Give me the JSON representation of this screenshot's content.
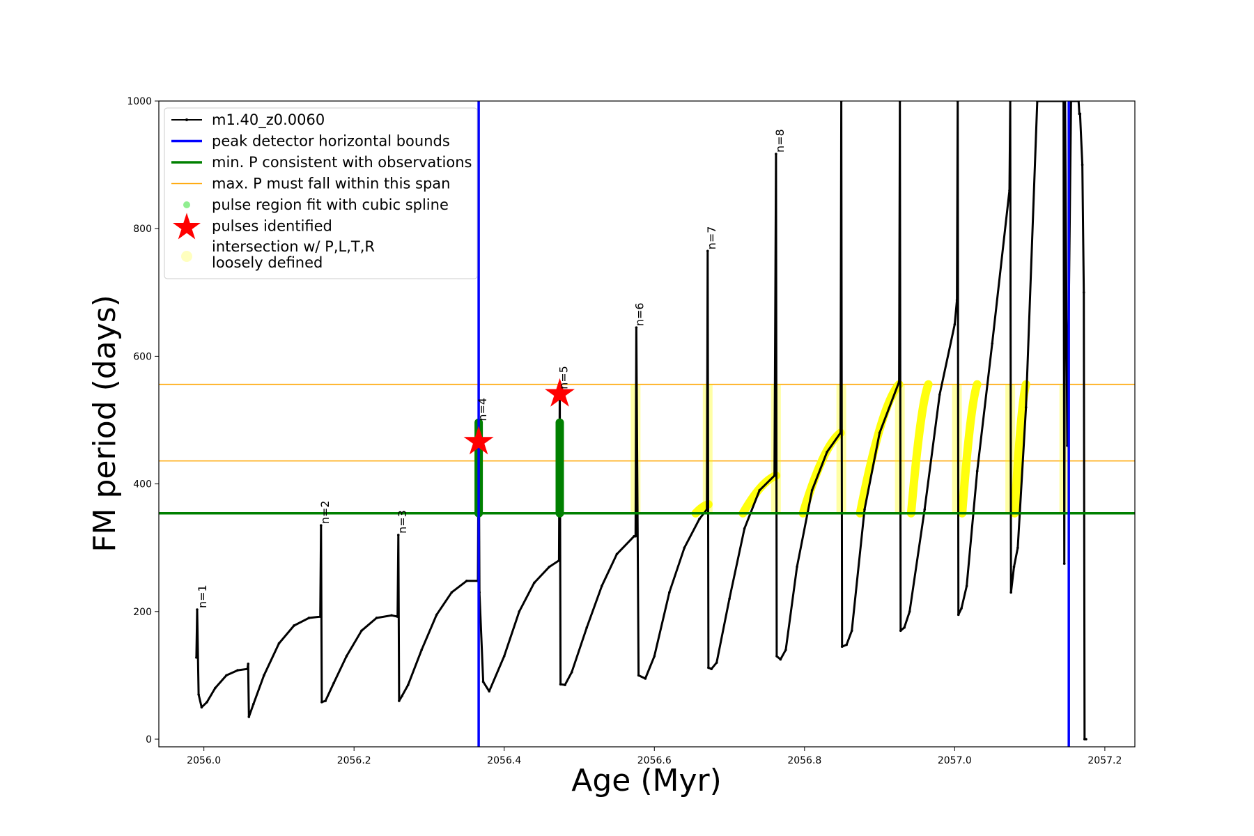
{
  "chart_data": {
    "type": "line",
    "xlabel": "Age (Myr)",
    "ylabel": "FM period (days)",
    "xlim": [
      2055.94,
      2057.24
    ],
    "ylim": [
      -12,
      1000
    ],
    "xticks": [
      "2056.0",
      "2056.2",
      "2056.4",
      "2056.6",
      "2056.8",
      "2057.0",
      "2057.2"
    ],
    "xtick_values": [
      2056.0,
      2056.2,
      2056.4,
      2056.6,
      2056.8,
      2057.0,
      2057.2
    ],
    "yticks": [
      "0",
      "200",
      "400",
      "600",
      "800",
      "1000"
    ],
    "ytick_values": [
      0,
      200,
      400,
      600,
      800,
      1000
    ],
    "grid": false,
    "legend_position": "upper-left",
    "legend": [
      {
        "key": "model",
        "label": "m1.40_z0.0060"
      },
      {
        "key": "bounds",
        "label": "peak detector horizontal bounds"
      },
      {
        "key": "minp",
        "label": "min. P consistent with observations"
      },
      {
        "key": "maxp",
        "label": "max. P must fall within this span"
      },
      {
        "key": "spline",
        "label": "pulse region fit with cubic spline"
      },
      {
        "key": "pulses",
        "label": "pulses identified"
      },
      {
        "key": "loose",
        "label_lines": [
          "intersection w/ P,L,T,R",
          "loosely defined"
        ]
      }
    ],
    "colors": {
      "model": "#000000",
      "bounds": "#0000ff",
      "minp": "#008000",
      "maxp": "#ffa500",
      "spline": "#90ee90",
      "pulses": "#ff0000",
      "loose": "#ffff00"
    },
    "horizontal_bounds_x": [
      2056.366,
      2057.152
    ],
    "min_period": 354,
    "max_period_span": [
      436,
      556
    ],
    "pulse_labels": [
      {
        "text": "n=1",
        "x": 2055.993,
        "y": 203
      },
      {
        "text": "n=2",
        "x": 2056.156,
        "y": 335
      },
      {
        "text": "n=3",
        "x": 2056.259,
        "y": 320
      },
      {
        "text": "n=4",
        "x": 2056.366,
        "y": 496
      },
      {
        "text": "n=5",
        "x": 2056.474,
        "y": 546
      },
      {
        "text": "n=6",
        "x": 2056.575,
        "y": 645
      },
      {
        "text": "n=7",
        "x": 2056.671,
        "y": 765
      },
      {
        "text": "n=8",
        "x": 2056.762,
        "y": 917
      }
    ],
    "pulses_identified": [
      {
        "x": 2056.366,
        "y": 466
      },
      {
        "x": 2056.474,
        "y": 541
      }
    ],
    "series": [
      {
        "name": "m1.40_z0.0060",
        "x": [
          2055.99,
          2055.991,
          2055.993,
          2055.997,
          2056.004,
          2056.015,
          2056.03,
          2056.045,
          2056.058,
          2056.059,
          2056.06,
          2056.066,
          2056.08,
          2056.1,
          2056.12,
          2056.14,
          2056.155,
          2056.156,
          2056.157,
          2056.162,
          2056.173,
          2056.19,
          2056.21,
          2056.23,
          2056.25,
          2056.258,
          2056.259,
          2056.26,
          2056.264,
          2056.272,
          2056.29,
          2056.31,
          2056.33,
          2056.35,
          2056.365,
          2056.366,
          2056.367,
          2056.372,
          2056.38,
          2056.4,
          2056.42,
          2056.44,
          2056.46,
          2056.473,
          2056.474,
          2056.475,
          2056.481,
          2056.49,
          2056.51,
          2056.53,
          2056.55,
          2056.573,
          2056.575,
          2056.576,
          2056.579,
          2056.588,
          2056.6,
          2056.62,
          2056.64,
          2056.66,
          2056.67,
          2056.671,
          2056.672,
          2056.676,
          2056.683,
          2056.7,
          2056.72,
          2056.74,
          2056.76,
          2056.762,
          2056.763,
          2056.768,
          2056.775,
          2056.79,
          2056.81,
          2056.83,
          2056.848,
          2056.849,
          2056.85,
          2056.856,
          2056.863,
          2056.88,
          2056.9,
          2056.926,
          2056.927,
          2056.928,
          2056.933,
          2056.94,
          2056.96,
          2056.98,
          2057.0,
          2057.003,
          2057.004,
          2057.005,
          2057.009,
          2057.016,
          2057.03,
          2057.05,
          2057.073,
          2057.074,
          2057.075,
          2057.079,
          2057.084,
          2057.095,
          2057.11,
          2057.145,
          2057.146,
          2057.147,
          2057.15,
          2057.155,
          2057.165,
          2057.166,
          2057.167,
          2057.17,
          2057.172,
          2057.173,
          2057.175
        ],
        "y": [
          128,
          203,
          70,
          50,
          58,
          80,
          100,
          108,
          110,
          118,
          35,
          55,
          100,
          150,
          178,
          190,
          192,
          335,
          58,
          60,
          88,
          130,
          170,
          190,
          194,
          192,
          320,
          60,
          68,
          85,
          140,
          195,
          230,
          248,
          248,
          496,
          230,
          90,
          75,
          130,
          200,
          245,
          270,
          280,
          546,
          86,
          85,
          105,
          175,
          240,
          290,
          318,
          318,
          645,
          100,
          95,
          130,
          230,
          300,
          345,
          360,
          765,
          112,
          110,
          120,
          220,
          330,
          390,
          413,
          917,
          130,
          125,
          140,
          270,
          390,
          450,
          480,
          1000,
          145,
          148,
          170,
          360,
          480,
          560,
          1000,
          170,
          175,
          200,
          360,
          540,
          650,
          688,
          1000,
          195,
          205,
          240,
          420,
          620,
          860,
          1000,
          230,
          270,
          300,
          520,
          1000,
          1000,
          275,
          1000,
          460,
          1000,
          1000,
          980,
          980,
          900,
          700,
          0,
          0
        ]
      }
    ],
    "spline_fits": [
      {
        "x": 2056.366,
        "y_range": [
          354,
          496
        ]
      },
      {
        "x": 2056.474,
        "y_range": [
          354,
          496
        ]
      }
    ],
    "loose_intersections": [
      {
        "x_range": [
          2056.655,
          2056.672
        ],
        "y_range": [
          354,
          368
        ]
      },
      {
        "x_range": [
          2056.718,
          2056.762
        ],
        "y_range": [
          354,
          413
        ]
      },
      {
        "x_range": [
          2056.798,
          2056.848
        ],
        "y_range": [
          354,
          480
        ]
      },
      {
        "x_range": [
          2056.874,
          2056.926
        ],
        "y_range": [
          354,
          556
        ]
      },
      {
        "x_range": [
          2056.942,
          2056.965
        ],
        "y_range": [
          354,
          556
        ]
      },
      {
        "x_range": [
          2057.01,
          2057.03
        ],
        "y_range": [
          354,
          556
        ]
      },
      {
        "x_range": [
          2057.08,
          2057.095
        ],
        "y_range": [
          354,
          556
        ]
      }
    ],
    "loose_columns": [
      2056.575,
      2056.671,
      2056.762,
      2056.849,
      2056.927,
      2057.003,
      2057.074,
      2057.146
    ]
  }
}
